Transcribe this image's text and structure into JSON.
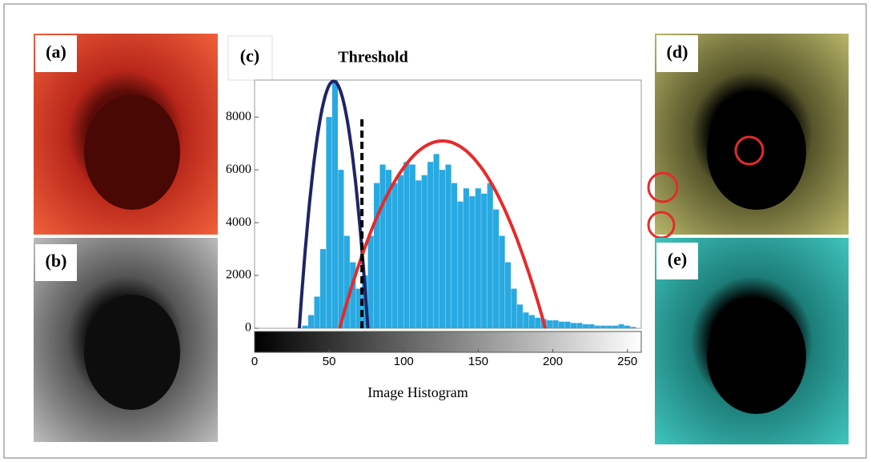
{
  "panels": {
    "a": "(a)",
    "b": "(b)",
    "d": "(d)",
    "e": "(e)"
  },
  "chart_data": {
    "type": "histogram",
    "label": "(c)",
    "title": "Threshold",
    "xlabel": "Image Histogram",
    "bins": [
      0,
      4,
      8,
      12,
      16,
      20,
      24,
      28,
      32,
      36,
      40,
      44,
      48,
      52,
      56,
      60,
      64,
      68,
      72,
      76,
      80,
      84,
      88,
      92,
      96,
      100,
      104,
      108,
      112,
      116,
      120,
      124,
      128,
      132,
      136,
      140,
      144,
      148,
      152,
      156,
      160,
      164,
      168,
      172,
      176,
      180,
      184,
      188,
      192,
      196,
      200,
      204,
      208,
      212,
      216,
      220,
      224,
      228,
      232,
      236,
      240,
      244,
      248,
      252,
      256
    ],
    "values": [
      0,
      0,
      0,
      0,
      0,
      0,
      0,
      0,
      100,
      500,
      1200,
      3000,
      8000,
      9400,
      6000,
      3500,
      2500,
      1500,
      2000,
      3500,
      5500,
      6200,
      6000,
      5500,
      5800,
      6300,
      6200,
      5600,
      5800,
      6300,
      6600,
      6000,
      6200,
      5500,
      4800,
      5300,
      5000,
      5300,
      5100,
      5500,
      4500,
      3500,
      2500,
      1500,
      900,
      600,
      500,
      400,
      350,
      300,
      300,
      250,
      250,
      200,
      200,
      150,
      150,
      100,
      100,
      100,
      100,
      150,
      100,
      50
    ],
    "color": "#29a9e1",
    "xlim": [
      0,
      255
    ],
    "ylim": [
      0,
      9400
    ],
    "xticks": [
      0,
      50,
      100,
      150,
      200,
      250
    ],
    "yticks": [
      0,
      2000,
      4000,
      6000,
      8000
    ],
    "curves": [
      {
        "color": "#1f2466",
        "x": [
          30,
          50,
          76
        ],
        "y": [
          0,
          9200,
          0
        ]
      },
      {
        "color": "#e62a2a",
        "x": [
          57,
          118,
          195
        ],
        "y": [
          0,
          7000,
          0
        ]
      }
    ],
    "threshold": {
      "x": 72,
      "y": [
        0,
        8000
      ]
    }
  }
}
